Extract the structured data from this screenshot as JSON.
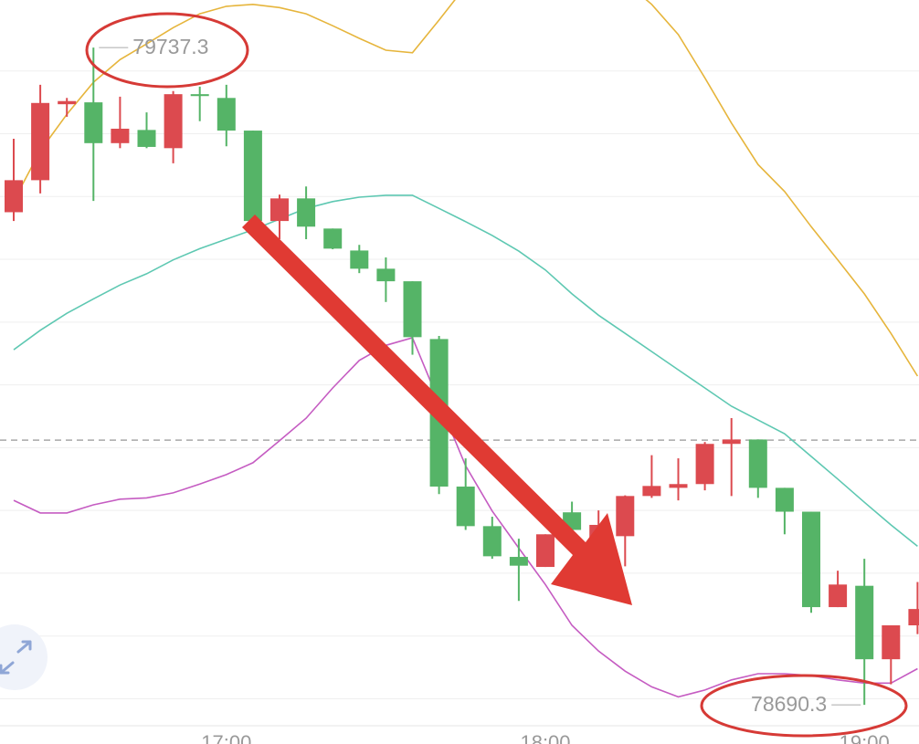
{
  "chart_data": {
    "type": "candlestick",
    "categories": [
      null,
      null,
      null,
      null,
      null,
      null,
      null,
      null,
      "17:00",
      null,
      null,
      null,
      null,
      null,
      null,
      null,
      null,
      null,
      null,
      null,
      "18:00",
      null,
      null,
      null,
      null,
      null,
      null,
      null,
      null,
      null,
      null,
      null,
      "19:00",
      null,
      null
    ],
    "open": [
      79475,
      79526,
      79647,
      79650,
      79585,
      79606,
      79577,
      79663,
      79657,
      79605,
      79461,
      79497,
      79449,
      79414,
      79385,
      79365,
      79273,
      79038,
      78975,
      78926,
      78910,
      78997,
      78940,
      78959,
      79023,
      79036,
      79042,
      79106,
      79113,
      79036,
      78998,
      78846,
      78880,
      78763,
      78817
    ],
    "high": [
      79592,
      79678,
      79657,
      79737.3,
      79659,
      79634,
      79668,
      79675,
      79678,
      79605,
      79503,
      79516,
      79449,
      79423,
      79403,
      79365,
      79278,
      79083,
      78990,
      78955,
      78962,
      79014,
      79000,
      79024,
      79088,
      79083,
      79109,
      79147,
      79113,
      79036,
      78998,
      78904,
      78923,
      78817,
      78886
    ],
    "low": [
      79461,
      79505,
      79627,
      79493,
      79577,
      79577,
      79553,
      79620,
      79580,
      79461,
      79432,
      79432,
      79416,
      79378,
      79332,
      79248,
      79026,
      78969,
      78923,
      78856,
      78910,
      78950,
      78901,
      78911,
      79020,
      79016,
      79032,
      79023,
      79020,
      78962,
      78837,
      78846,
      78690.3,
      78723,
      78803
    ],
    "close": [
      79526,
      79649,
      79652,
      79585,
      79608,
      79579,
      79663,
      79660,
      79605,
      79461,
      79497,
      79452,
      79417,
      79385,
      79365,
      79276,
      79038,
      78975,
      78927,
      78912,
      78962,
      78969,
      78977,
      79023,
      79039,
      79042,
      79106,
      79113,
      79036,
      78998,
      78846,
      78882,
      78763,
      78817,
      78843
    ],
    "up_color": "#dc4a4f",
    "down_color": "#55b467",
    "overlays": [
      {
        "color": "#e6b53c",
        "values": [
          79493,
          79573,
          79631,
          79682,
          79718,
          79743,
          79769,
          79791,
          79803,
          79806,
          79801,
          79791,
          79772,
          79752,
          79733,
          79729,
          79781,
          79835,
          79864,
          79878,
          79886,
          79878,
          79864,
          79842,
          79806,
          79758,
          79689,
          79617,
          79551,
          79508,
          79452,
          79399,
          79345,
          79282,
          79214
        ]
      },
      {
        "color": "#5ec8b2",
        "values": [
          79256,
          79287,
          79314,
          79337,
          79359,
          79377,
          79399,
          79417,
          79432,
          79447,
          79464,
          79481,
          79492,
          79499,
          79502,
          79502,
          79481,
          79460,
          79438,
          79413,
          79383,
          79345,
          79311,
          79282,
          79253,
          79224,
          79195,
          79166,
          79144,
          79122,
          79086,
          79050,
          79013,
          78977,
          78943
        ]
      },
      {
        "color": "#c55cc2",
        "values": [
          79016,
          78996,
          78996,
          79009,
          79018,
          79020,
          79028,
          79042,
          79057,
          79076,
          79111,
          79147,
          79195,
          79239,
          79263,
          79275,
          79173,
          79071,
          78999,
          78940,
          78882,
          78817,
          78776,
          78744,
          78719,
          78703,
          78714,
          78730,
          78740,
          78740,
          78737,
          78730,
          78725,
          78725,
          78748
        ]
      }
    ],
    "ylim": [
      78628,
      79813
    ],
    "yticks": [
      78700,
      78800,
      78900,
      79000,
      79100,
      79200,
      79300,
      79400,
      79500,
      79600,
      79700
    ],
    "grid": true,
    "reference_line": 79112,
    "max_label": 79737.3,
    "min_label": 78690.3
  }
}
